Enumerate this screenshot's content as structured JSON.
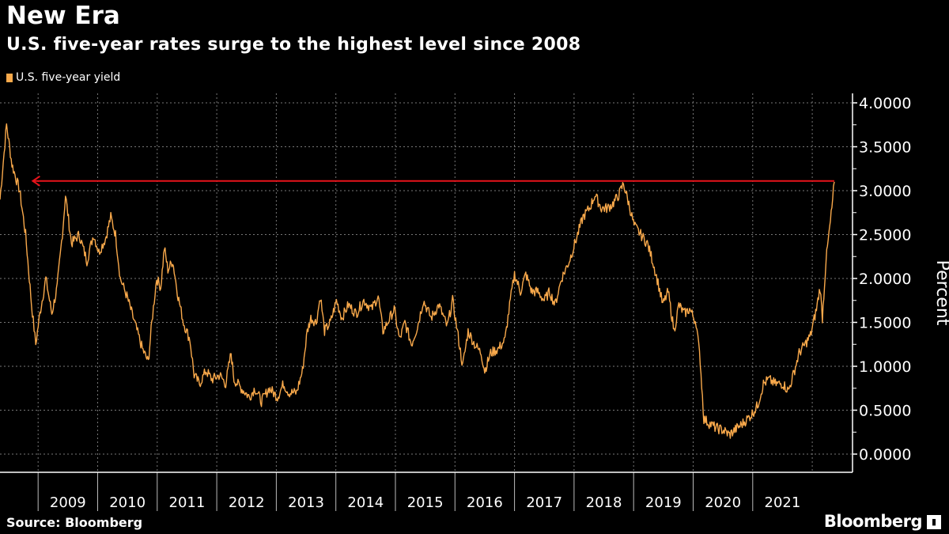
{
  "header": {
    "title": "New Era",
    "subtitle": "U.S. five-year rates surge to the highest level since 2008"
  },
  "footer": {
    "source": "Source: Bloomberg",
    "brand": "Bloomberg",
    "brand_icon": "bloomberg-logo-icon"
  },
  "colors": {
    "series": "#f9a94b",
    "arrow": "#e8131b",
    "background": "#000000",
    "grid": "#777777"
  },
  "chart_data": {
    "type": "line",
    "title": "New Era",
    "subtitle": "U.S. five-year rates surge to the highest level since 2008",
    "xlabel": "",
    "ylabel": "Percent",
    "ylim": [
      -0.2,
      4.15
    ],
    "xlim": [
      2008.36,
      2022.7
    ],
    "grid": true,
    "legend": {
      "placement": "top-left",
      "entries": [
        "U.S. five-year yield"
      ]
    },
    "x_ticks": [
      "2009",
      "2010",
      "2011",
      "2012",
      "2013",
      "2014",
      "2015",
      "2016",
      "2017",
      "2018",
      "2019",
      "2020",
      "2021"
    ],
    "y_ticks": [
      "0.0000",
      "0.5000",
      "1.0000",
      "1.5000",
      "2.0000",
      "2.5000",
      "3.0000",
      "3.5000",
      "4.0000"
    ],
    "annotation": {
      "type": "arrow",
      "value": 3.11,
      "from": 2022.37,
      "to": 2008.91,
      "description_shown": false
    },
    "series": [
      {
        "name": "U.S. five-year yield",
        "x": [
          2008.36,
          2008.47,
          2008.56,
          2008.69,
          2008.79,
          2008.89,
          2008.96,
          2009.03,
          2009.13,
          2009.23,
          2009.32,
          2009.42,
          2009.46,
          2009.56,
          2009.69,
          2009.82,
          2009.93,
          2010.02,
          2010.13,
          2010.22,
          2010.3,
          2010.38,
          2010.49,
          2010.62,
          2010.75,
          2010.85,
          2010.91,
          2010.99,
          2011.06,
          2011.12,
          2011.18,
          2011.26,
          2011.35,
          2011.44,
          2011.55,
          2011.62,
          2011.71,
          2011.82,
          2011.92,
          2012.05,
          2012.15,
          2012.24,
          2012.29,
          2012.41,
          2012.55,
          2012.64,
          2012.75,
          2012.88,
          2013.02,
          2013.12,
          2013.21,
          2013.34,
          2013.44,
          2013.52,
          2013.58,
          2013.67,
          2013.74,
          2013.81,
          2013.91,
          2014.01,
          2014.1,
          2014.21,
          2014.34,
          2014.47,
          2014.6,
          2014.71,
          2014.79,
          2014.87,
          2014.98,
          2015.07,
          2015.16,
          2015.27,
          2015.37,
          2015.47,
          2015.6,
          2015.73,
          2015.87,
          2015.96,
          2016.04,
          2016.13,
          2016.22,
          2016.33,
          2016.44,
          2016.5,
          2016.6,
          2016.73,
          2016.84,
          2016.93,
          2017.0,
          2017.1,
          2017.19,
          2017.29,
          2017.39,
          2017.5,
          2017.59,
          2017.68,
          2017.79,
          2017.92,
          2018.06,
          2018.15,
          2018.26,
          2018.35,
          2018.46,
          2018.56,
          2018.65,
          2018.75,
          2018.83,
          2018.92,
          2019.01,
          2019.12,
          2019.23,
          2019.32,
          2019.41,
          2019.49,
          2019.58,
          2019.68,
          2019.76,
          2019.85,
          2019.94,
          2020.05,
          2020.12,
          2020.18,
          2020.27,
          2020.38,
          2020.51,
          2020.61,
          2020.71,
          2020.85,
          2020.98,
          2021.08,
          2021.18,
          2021.27,
          2021.38,
          2021.51,
          2021.6,
          2021.68,
          2021.78,
          2021.88,
          2021.97,
          2022.07,
          2022.13,
          2022.17,
          2022.23,
          2022.28,
          2022.33,
          2022.37
        ],
        "values": [
          2.9,
          3.75,
          3.3,
          3.0,
          2.5,
          1.7,
          1.25,
          1.6,
          2.0,
          1.6,
          1.9,
          2.6,
          2.95,
          2.4,
          2.5,
          2.2,
          2.5,
          2.3,
          2.45,
          2.7,
          2.5,
          2.0,
          1.8,
          1.5,
          1.2,
          1.05,
          1.5,
          2.0,
          1.9,
          2.35,
          2.1,
          2.2,
          1.8,
          1.5,
          1.3,
          0.9,
          0.8,
          0.95,
          0.85,
          0.9,
          0.8,
          1.15,
          0.85,
          0.75,
          0.65,
          0.75,
          0.6,
          0.75,
          0.65,
          0.8,
          0.7,
          0.7,
          0.95,
          1.4,
          1.55,
          1.5,
          1.8,
          1.4,
          1.5,
          1.75,
          1.55,
          1.7,
          1.6,
          1.75,
          1.65,
          1.8,
          1.4,
          1.5,
          1.65,
          1.3,
          1.5,
          1.25,
          1.45,
          1.75,
          1.55,
          1.7,
          1.45,
          1.75,
          1.4,
          1.0,
          1.4,
          1.25,
          1.15,
          0.95,
          1.15,
          1.2,
          1.3,
          1.75,
          2.05,
          1.85,
          2.05,
          1.85,
          1.85,
          1.75,
          1.85,
          1.7,
          2.0,
          2.2,
          2.5,
          2.7,
          2.8,
          2.95,
          2.8,
          2.8,
          2.85,
          2.95,
          3.08,
          2.85,
          2.6,
          2.5,
          2.4,
          2.2,
          1.95,
          1.7,
          1.85,
          1.4,
          1.7,
          1.6,
          1.65,
          1.5,
          1.05,
          0.4,
          0.35,
          0.3,
          0.27,
          0.22,
          0.28,
          0.36,
          0.45,
          0.55,
          0.8,
          0.85,
          0.8,
          0.8,
          0.72,
          0.9,
          1.15,
          1.25,
          1.35,
          1.65,
          1.9,
          1.55,
          2.2,
          2.5,
          2.8,
          3.1
        ]
      }
    ]
  }
}
